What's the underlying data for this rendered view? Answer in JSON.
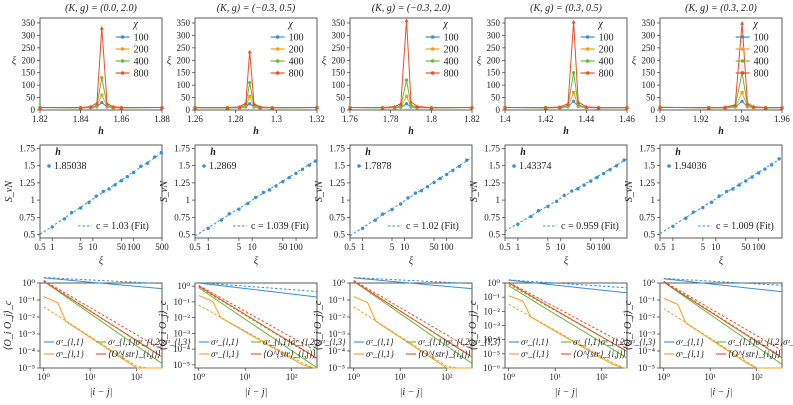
{
  "chart_data": {
    "colors": {
      "c100": "#3a8fd0",
      "c200": "#f0a020",
      "c400": "#6ab83a",
      "c800": "#e8502a"
    },
    "row1": {
      "type": "line",
      "ylabel": "ξ",
      "xlabel": "h",
      "legend_title": "χ",
      "legend": [
        "100",
        "200",
        "400",
        "800"
      ],
      "ylim": [
        0,
        370
      ],
      "yticks": [
        0,
        50,
        100,
        150,
        200,
        250,
        300,
        350
      ],
      "panels": [
        {
          "title": "(K, g) = (0.0, 2.0)",
          "xlim": [
            1.82,
            1.88
          ],
          "xticks": [
            1.82,
            1.84,
            1.86,
            1.88
          ],
          "xtick_labels": [
            "1.82",
            "1.84",
            "1.86",
            "1.88"
          ],
          "peak_x": 1.8504,
          "peaks": [
            30,
            60,
            130,
            330
          ],
          "x": [
            1.82,
            1.84,
            1.845,
            1.848,
            1.8504,
            1.853,
            1.856,
            1.86,
            1.88
          ],
          "base": [
            10,
            17,
            30,
            45
          ]
        },
        {
          "title": "(K, g) = (−0.3, 0.5)",
          "xlim": [
            1.26,
            1.32
          ],
          "xticks": [
            1.26,
            1.28,
            1.3,
            1.32
          ],
          "xtick_labels": [
            "1.26",
            "1.28",
            "1.3",
            "1.32"
          ],
          "peak_x": 1.2869,
          "peaks": [
            25,
            55,
            110,
            235
          ],
          "x": [
            1.26,
            1.276,
            1.282,
            1.285,
            1.2869,
            1.289,
            1.292,
            1.298,
            1.32
          ],
          "base": [
            10,
            17,
            30,
            45
          ]
        },
        {
          "title": "(K, g) = (−0.3, 2.0)",
          "xlim": [
            1.76,
            1.82
          ],
          "xticks": [
            1.76,
            1.78,
            1.8,
            1.82
          ],
          "xtick_labels": [
            "1.76",
            "1.78",
            "1.8",
            "1.82"
          ],
          "peak_x": 1.7878,
          "peaks": [
            25,
            55,
            120,
            360
          ],
          "x": [
            1.76,
            1.776,
            1.782,
            1.785,
            1.7878,
            1.79,
            1.793,
            1.8,
            1.82
          ],
          "base": [
            10,
            17,
            30,
            45
          ]
        },
        {
          "title": "(K, g) = (0.3, 0.5)",
          "xlim": [
            1.4,
            1.46
          ],
          "xticks": [
            1.4,
            1.42,
            1.44,
            1.46
          ],
          "xtick_labels": [
            "1.4",
            "1.42",
            "1.44",
            "1.46"
          ],
          "peak_x": 1.43374,
          "peaks": [
            35,
            70,
            150,
            355
          ],
          "x": [
            1.4,
            1.42,
            1.427,
            1.431,
            1.43374,
            1.436,
            1.44,
            1.446,
            1.46
          ],
          "base": [
            10,
            17,
            30,
            45
          ]
        },
        {
          "title": "(K, g) = (0.3, 2.0)",
          "xlim": [
            1.9,
            1.96
          ],
          "xticks": [
            1.9,
            1.92,
            1.94,
            1.96
          ],
          "xtick_labels": [
            "1.9",
            "1.92",
            "1.94",
            "1.96"
          ],
          "peak_x": 1.94036,
          "peaks": [
            35,
            70,
            150,
            350
          ],
          "x": [
            1.9,
            1.924,
            1.932,
            1.937,
            1.94036,
            1.943,
            1.946,
            1.952,
            1.96
          ],
          "base": [
            10,
            17,
            30,
            45
          ]
        }
      ]
    },
    "row2": {
      "type": "scatter+fit",
      "ylabel": "S_vN",
      "xlabel": "ξ",
      "xscale": "log",
      "ylim": [
        0.45,
        1.8
      ],
      "yticks": [
        0.5,
        0.75,
        1.0,
        1.25,
        1.5,
        1.75
      ],
      "ytick_labels": [
        "0.5",
        "0.75",
        "1",
        "1.25",
        "1.5",
        "1.75"
      ],
      "legend_title": "h",
      "panels": [
        {
          "h": "1.85038",
          "fit": "c = 1.03 (Fit)",
          "c": 1.03,
          "b": 0.62,
          "xlim": [
            0.5,
            500
          ],
          "xticks": [
            0.5,
            1,
            5,
            10,
            50,
            100,
            500
          ],
          "xtick_labels": [
            "0.5",
            "1",
            "5",
            "10",
            "50",
            "100",
            "500"
          ],
          "points": [
            1,
            2,
            3,
            5,
            8,
            12,
            18,
            25,
            35,
            50,
            70,
            100,
            150,
            220,
            330,
            480
          ]
        },
        {
          "h": "1.2869",
          "fit": "c = 1.039 (Fit)",
          "c": 1.039,
          "b": 0.6,
          "xlim": [
            0.5,
            300
          ],
          "xticks": [
            0.5,
            1,
            5,
            10,
            50,
            100
          ],
          "xtick_labels": [
            "0.5",
            "1",
            "5",
            "10",
            "50",
            "100"
          ],
          "points": [
            1,
            2,
            3,
            5,
            8,
            12,
            18,
            25,
            35,
            50,
            70,
            100,
            140,
            200,
            280
          ]
        },
        {
          "h": "1.7878",
          "fit": "c = 1.02 (Fit)",
          "c": 1.02,
          "b": 0.6,
          "xlim": [
            0.5,
            400
          ],
          "xticks": [
            0.5,
            1,
            5,
            10,
            50,
            100
          ],
          "xtick_labels": [
            "0.5",
            "1",
            "5",
            "10",
            "50",
            "100"
          ],
          "points": [
            1,
            2,
            3,
            5,
            8,
            12,
            18,
            25,
            35,
            50,
            70,
            100,
            140,
            200,
            300
          ]
        },
        {
          "h": "1.43374",
          "fit": "c = 0.959 (Fit)",
          "c": 0.959,
          "b": 0.66,
          "xlim": [
            0.5,
            350
          ],
          "xticks": [
            0.5,
            1,
            5,
            10,
            50,
            100
          ],
          "xtick_labels": [
            "0.5",
            "1",
            "5",
            "10",
            "50",
            "100"
          ],
          "points": [
            1,
            2,
            3,
            5,
            8,
            12,
            18,
            25,
            35,
            50,
            70,
            100,
            140,
            200,
            300
          ]
        },
        {
          "h": "1.94036",
          "fit": "c = 1.009 (Fit)",
          "c": 1.009,
          "b": 0.63,
          "xlim": [
            0.5,
            350
          ],
          "xticks": [
            0.5,
            1,
            5,
            10,
            50,
            100
          ],
          "xtick_labels": [
            "0.5",
            "1",
            "5",
            "10",
            "50",
            "100"
          ],
          "points": [
            1,
            2,
            3,
            5,
            8,
            12,
            18,
            25,
            35,
            50,
            70,
            100,
            140,
            200,
            300
          ]
        }
      ]
    },
    "row3": {
      "type": "line",
      "ylabel": "⟨O_i O_j⟩_c",
      "xlabel": "|i − j|",
      "xscale": "log",
      "yscale": "log",
      "xlim": [
        1,
        350
      ],
      "xticks": [
        1,
        10,
        100
      ],
      "xtick_labels": [
        "10⁰",
        "10¹",
        "10²"
      ],
      "legend": [
        "σᶻ_{l,1}",
        "σᶻ_{l,1}σᶻ_{l,2}σᶻ_{l,3}",
        "σˣ_{l,1}",
        "⟨O^{str}_{i,j}⟩"
      ],
      "panels": [
        {
          "ylim": [
            -5,
            0
          ],
          "yticks": [
            0,
            -1,
            -2,
            -3,
            -4,
            -5
          ],
          "ytick_labels": [
            "10⁰",
            "10⁻¹",
            "10⁻²",
            "10⁻³",
            "10⁻⁴",
            "10⁻⁵"
          ],
          "series": [
            {
              "name": "z",
              "color": "c100",
              "y0": 0.3,
              "p": 0.25,
              "dash_y0": 0.32,
              "dash_p": 0.14
            },
            {
              "name": "zzz",
              "color": "c400",
              "y0": 0.1,
              "p": 1.9,
              "dash_y0": 0.12,
              "dash_p": 1.75
            },
            {
              "name": "x",
              "color": "c200",
              "y0": -1.4,
              "p": 1.8,
              "dash_y0": -1.4,
              "dash_p": 1.75
            },
            {
              "name": "str",
              "color": "c800",
              "y0": 0.1,
              "p": 1.75,
              "dash_y0": 0.15,
              "dash_p": 1.6
            }
          ]
        },
        {
          "ylim": [
            -5.2,
            0.2
          ],
          "yticks": [
            0,
            -1,
            -2,
            -3,
            -4,
            -5
          ],
          "ytick_labels": [
            "10⁰",
            "10⁻¹",
            "10⁻²",
            "10⁻³",
            "10⁻⁴",
            "10⁻⁵"
          ],
          "series": [
            {
              "name": "z",
              "color": "c100",
              "y0": 0.2,
              "p": 0.35,
              "dash_y0": 0.22,
              "dash_p": 0.22
            },
            {
              "name": "zzz",
              "color": "c400",
              "y0": -0.1,
              "p": 2.0,
              "dash_y0": -0.05,
              "dash_p": 1.8
            },
            {
              "name": "x",
              "color": "c200",
              "y0": -1.2,
              "p": 1.7,
              "dash_y0": -1.2,
              "dash_p": 1.65
            },
            {
              "name": "str",
              "color": "c800",
              "y0": 0.0,
              "p": 1.8,
              "dash_y0": 0.05,
              "dash_p": 1.65
            }
          ]
        },
        {
          "ylim": [
            -5,
            0
          ],
          "yticks": [
            0,
            -1,
            -2,
            -3,
            -4,
            -5
          ],
          "ytick_labels": [
            "10⁰",
            "10⁻¹",
            "10⁻²",
            "10⁻³",
            "10⁻⁴",
            "10⁻⁵"
          ],
          "series": [
            {
              "name": "z",
              "color": "c100",
              "y0": 0.3,
              "p": 0.25,
              "dash_y0": 0.32,
              "dash_p": 0.14
            },
            {
              "name": "zzz",
              "color": "c400",
              "y0": 0.1,
              "p": 1.9,
              "dash_y0": 0.12,
              "dash_p": 1.75
            },
            {
              "name": "x",
              "color": "c200",
              "y0": -1.4,
              "p": 1.8,
              "dash_y0": -1.4,
              "dash_p": 1.75
            },
            {
              "name": "str",
              "color": "c800",
              "y0": 0.1,
              "p": 1.75,
              "dash_y0": 0.15,
              "dash_p": 1.6
            }
          ]
        },
        {
          "ylim": [
            -6,
            0
          ],
          "yticks": [
            0,
            -1,
            -2,
            -3,
            -4,
            -5,
            -6
          ],
          "ytick_labels": [
            "10⁰",
            "10⁻¹",
            "10⁻²",
            "10⁻³",
            "10⁻⁴",
            "10⁻⁵",
            "10⁻⁶"
          ],
          "series": [
            {
              "name": "z",
              "color": "c100",
              "y0": 0.2,
              "p": 0.35,
              "dash_y0": 0.22,
              "dash_p": 0.22
            },
            {
              "name": "zzz",
              "color": "c400",
              "y0": -0.2,
              "p": 2.0,
              "dash_y0": -0.1,
              "dash_p": 1.85
            },
            {
              "name": "x",
              "color": "c200",
              "y0": -1.5,
              "p": 1.9,
              "dash_y0": -1.5,
              "dash_p": 1.85
            },
            {
              "name": "str",
              "color": "c800",
              "y0": 0.0,
              "p": 1.9,
              "dash_y0": 0.05,
              "dash_p": 1.75
            }
          ]
        },
        {
          "ylim": [
            -5,
            0
          ],
          "yticks": [
            0,
            -1,
            -2,
            -3,
            -4,
            -5
          ],
          "ytick_labels": [
            "10⁰",
            "10⁻¹",
            "10⁻²",
            "10⁻³",
            "10⁻⁴",
            "10⁻⁵"
          ],
          "series": [
            {
              "name": "z",
              "color": "c100",
              "y0": 0.25,
              "p": 0.3,
              "dash_y0": 0.27,
              "dash_p": 0.16
            },
            {
              "name": "zzz",
              "color": "c400",
              "y0": 0.05,
              "p": 1.9,
              "dash_y0": 0.1,
              "dash_p": 1.75
            },
            {
              "name": "x",
              "color": "c200",
              "y0": -1.5,
              "p": 1.8,
              "dash_y0": -1.5,
              "dash_p": 1.75
            },
            {
              "name": "str",
              "color": "c800",
              "y0": 0.05,
              "p": 1.75,
              "dash_y0": 0.1,
              "dash_p": 1.6
            }
          ]
        }
      ]
    }
  }
}
